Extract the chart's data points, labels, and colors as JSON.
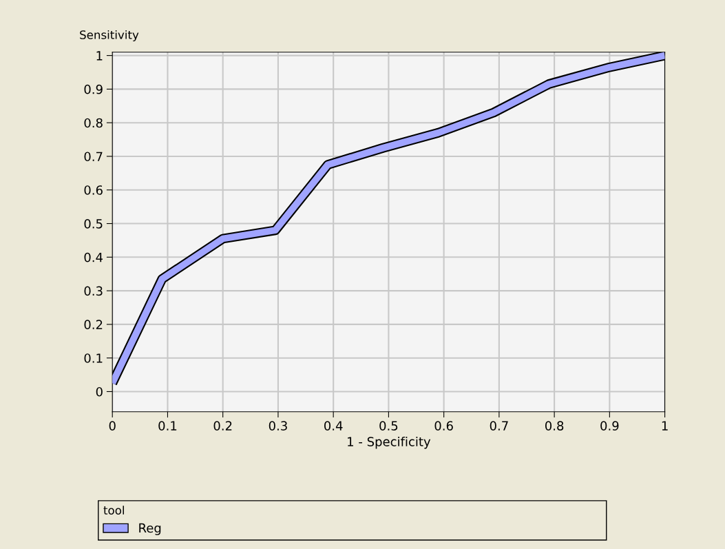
{
  "chart_data": {
    "type": "line",
    "xlabel": "1 - Specificity",
    "ylabel": "Sensitivity",
    "legend_title": "tool",
    "series": [
      {
        "name": "Reg",
        "color": "#a0a4ff",
        "x": [
          0,
          0.09,
          0.2,
          0.295,
          0.39,
          0.49,
          0.59,
          0.69,
          0.79,
          0.9,
          1.0
        ],
        "values": [
          0.025,
          0.335,
          0.455,
          0.48,
          0.675,
          0.725,
          0.77,
          0.83,
          0.915,
          0.965,
          1.0
        ]
      }
    ],
    "xlim": [
      0,
      1
    ],
    "xticks": [
      0,
      0.1,
      0.2,
      0.3,
      0.4,
      0.5,
      0.6,
      0.7,
      0.8,
      0.9,
      1
    ],
    "ylim": [
      -0.06,
      1.01
    ],
    "yticks": [
      0,
      0.1,
      0.2,
      0.3,
      0.4,
      0.5,
      0.6,
      0.7,
      0.8,
      0.9,
      1
    ],
    "grid": true,
    "legend": "bottom",
    "marker": "none",
    "line_style": "solid"
  }
}
